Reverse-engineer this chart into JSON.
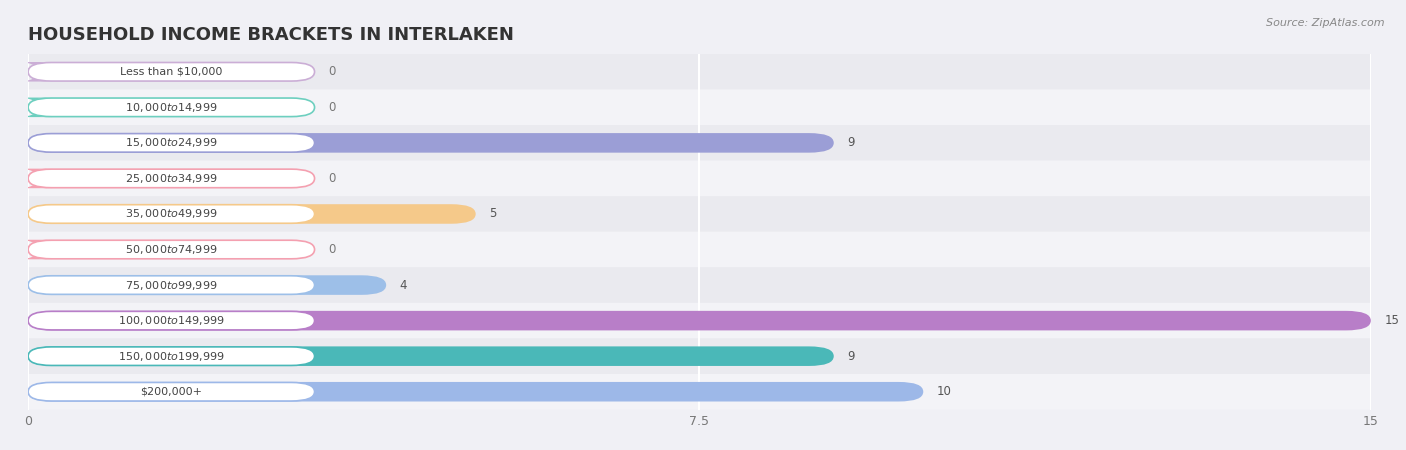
{
  "title": "HOUSEHOLD INCOME BRACKETS IN INTERLAKEN",
  "source": "Source: ZipAtlas.com",
  "categories": [
    "Less than $10,000",
    "$10,000 to $14,999",
    "$15,000 to $24,999",
    "$25,000 to $34,999",
    "$35,000 to $49,999",
    "$50,000 to $74,999",
    "$75,000 to $99,999",
    "$100,000 to $149,999",
    "$150,000 to $199,999",
    "$200,000+"
  ],
  "values": [
    0,
    0,
    9,
    0,
    5,
    0,
    4,
    15,
    9,
    10
  ],
  "bar_colors": [
    "#cbaed6",
    "#6dcfbf",
    "#9b9ed6",
    "#f4a0b0",
    "#f5c98a",
    "#f4a0b0",
    "#9dbfe8",
    "#b87ec8",
    "#4ab8b8",
    "#9db8e8"
  ],
  "xlim": [
    0,
    15
  ],
  "xticks": [
    0,
    7.5,
    15
  ],
  "bg_color": "#f0f0f5",
  "row_colors": [
    "#eaeaef",
    "#f3f3f7"
  ],
  "title_fontsize": 13,
  "source_fontsize": 8,
  "bar_label_fontsize": 8,
  "value_fontsize": 8.5
}
